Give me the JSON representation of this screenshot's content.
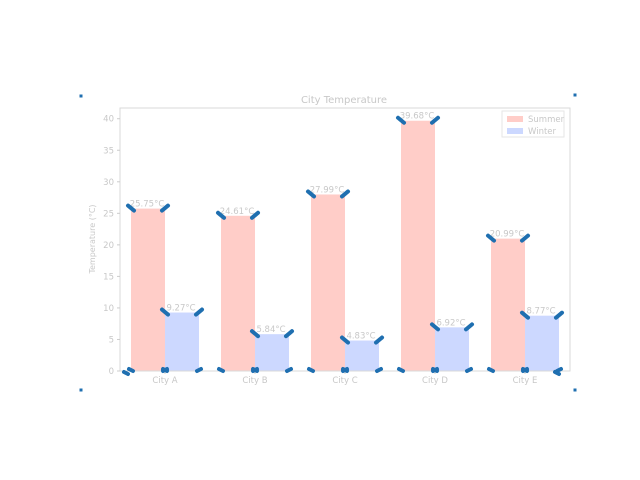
{
  "chart_data": {
    "type": "bar",
    "title": "City Temperature",
    "xlabel": "",
    "ylabel": "Temperature (°C)",
    "categories": [
      "City A",
      "City B",
      "City C",
      "City D",
      "City E"
    ],
    "series": [
      {
        "name": "Summer",
        "color": "#ffcdc8",
        "values": [
          25.75,
          24.61,
          27.99,
          39.68,
          20.99
        ]
      },
      {
        "name": "Winter",
        "color": "#ccd8ff",
        "values": [
          9.27,
          5.84,
          4.83,
          6.92,
          8.77
        ]
      }
    ],
    "value_labels": {
      "Summer": [
        "25.75°C",
        "24.61°C",
        "27.99°C",
        "39.68°C",
        "20.99°C"
      ],
      "Winter": [
        "9.27°C",
        "5.84°C",
        "4.83°C",
        "6.92°C",
        "8.77°C"
      ]
    },
    "ylim": [
      0,
      41.7
    ],
    "yticks": [
      0,
      5,
      10,
      15,
      20,
      25,
      30,
      35,
      40
    ],
    "grid": false,
    "legend_position": "top-right",
    "marker_color": "#1f6fb0",
    "text_color": "#c8c8c8"
  }
}
